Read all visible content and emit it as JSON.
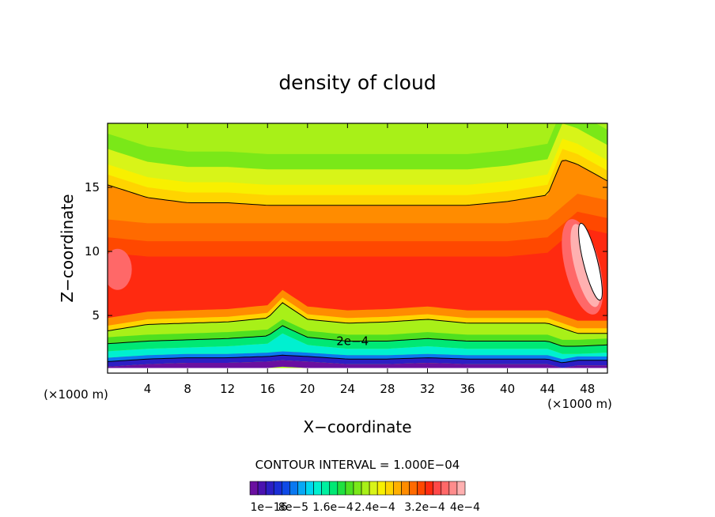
{
  "chart_data": {
    "type": "heatmap",
    "title": "density of cloud",
    "xlabel": "X−coordinate",
    "ylabel": "Z−coordinate",
    "x_unit_left": "(×1000 m)",
    "x_unit_right": "(×1000 m)",
    "xlim": [
      0,
      50
    ],
    "ylim": [
      0.5,
      20
    ],
    "x_ticks": [
      4,
      8,
      12,
      16,
      20,
      24,
      28,
      32,
      36,
      40,
      44,
      48
    ],
    "y_ticks": [
      5,
      10,
      15
    ],
    "contour_interval_label": "CONTOUR INTERVAL = 1.000E−04",
    "contour_labels": [
      {
        "text": "2e−4",
        "x": 24.5,
        "z": 3.0
      }
    ],
    "colorbar": {
      "min": 1e-16,
      "max": 0.0004,
      "tick_labels": [
        "1e−16",
        "8e−5",
        "1.6e−4",
        "2.4e−4",
        "3.2e−4",
        "4e−4"
      ],
      "colors": [
        "#6a0fa0",
        "#4a12b0",
        "#2c1ec4",
        "#1a2ed6",
        "#0f4ae6",
        "#0a78f0",
        "#08a8f5",
        "#00d6f0",
        "#00f0d0",
        "#00f0a0",
        "#00e874",
        "#20e040",
        "#4ee020",
        "#7ae818",
        "#a8f018",
        "#d8f418",
        "#f8f000",
        "#ffd400",
        "#ffb000",
        "#ff8c00",
        "#ff6a00",
        "#ff4800",
        "#ff2a10",
        "#ff4848",
        "#ff6868",
        "#ff8c8c",
        "#ffb0b0"
      ]
    },
    "field_profiles": {
      "x": [
        0,
        4,
        8,
        12,
        16,
        17.5,
        20,
        24,
        28,
        32,
        36,
        40,
        44,
        45.5,
        47,
        50
      ],
      "top_edge_z": [
        15.2,
        14.2,
        13.8,
        13.8,
        13.6,
        13.6,
        13.6,
        13.6,
        13.6,
        13.6,
        13.6,
        13.9,
        14.4,
        17.2,
        16.8,
        15.5
      ],
      "upper_layer_z": [
        10.5,
        10.2,
        10.2,
        10.2,
        10.2,
        10.2,
        10.2,
        10.2,
        10.2,
        10.2,
        10.2,
        10.2,
        10.5,
        11.5,
        12.5,
        12.0
      ],
      "lower_edge_z": [
        3.8,
        4.3,
        4.4,
        4.5,
        4.8,
        6.0,
        4.7,
        4.4,
        4.5,
        4.7,
        4.4,
        4.4,
        4.4,
        4.0,
        3.6,
        3.6
      ],
      "mid_edge_z": [
        2.8,
        3.0,
        3.1,
        3.2,
        3.4,
        4.2,
        3.3,
        3.0,
        3.0,
        3.2,
        3.0,
        3.0,
        3.0,
        2.6,
        2.6,
        2.7
      ],
      "base_edge_z": [
        1.4,
        1.6,
        1.7,
        1.7,
        1.8,
        1.9,
        1.8,
        1.6,
        1.6,
        1.7,
        1.6,
        1.6,
        1.6,
        1.3,
        1.5,
        1.5
      ]
    }
  }
}
